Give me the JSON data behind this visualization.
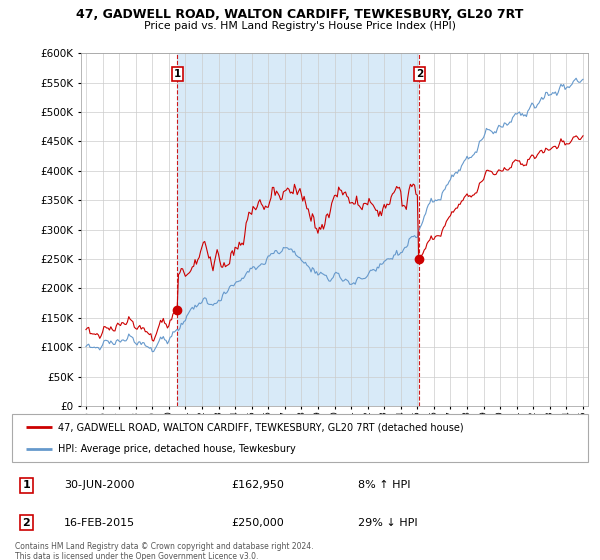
{
  "title": "47, GADWELL ROAD, WALTON CARDIFF, TEWKESBURY, GL20 7RT",
  "subtitle": "Price paid vs. HM Land Registry's House Price Index (HPI)",
  "legend_line1": "47, GADWELL ROAD, WALTON CARDIFF, TEWKESBURY, GL20 7RT (detached house)",
  "legend_line2": "HPI: Average price, detached house, Tewkesbury",
  "annotation1_date": "30-JUN-2000",
  "annotation1_price": "£162,950",
  "annotation1_hpi": "8% ↑ HPI",
  "annotation2_date": "16-FEB-2015",
  "annotation2_price": "£250,000",
  "annotation2_hpi": "29% ↓ HPI",
  "footer": "Contains HM Land Registry data © Crown copyright and database right 2024.\nThis data is licensed under the Open Government Licence v3.0.",
  "sale1_year": 2000.5,
  "sale1_y": 162950,
  "sale2_year": 2015.12,
  "sale2_y": 250000,
  "ylim": [
    0,
    600000
  ],
  "xlim_start": 1994.7,
  "xlim_end": 2025.3,
  "red_color": "#cc0000",
  "blue_color": "#6699cc",
  "blue_fill": "#ddeeff",
  "background_color": "#ffffff",
  "grid_color": "#cccccc",
  "shade_color": "#d8eaf8"
}
